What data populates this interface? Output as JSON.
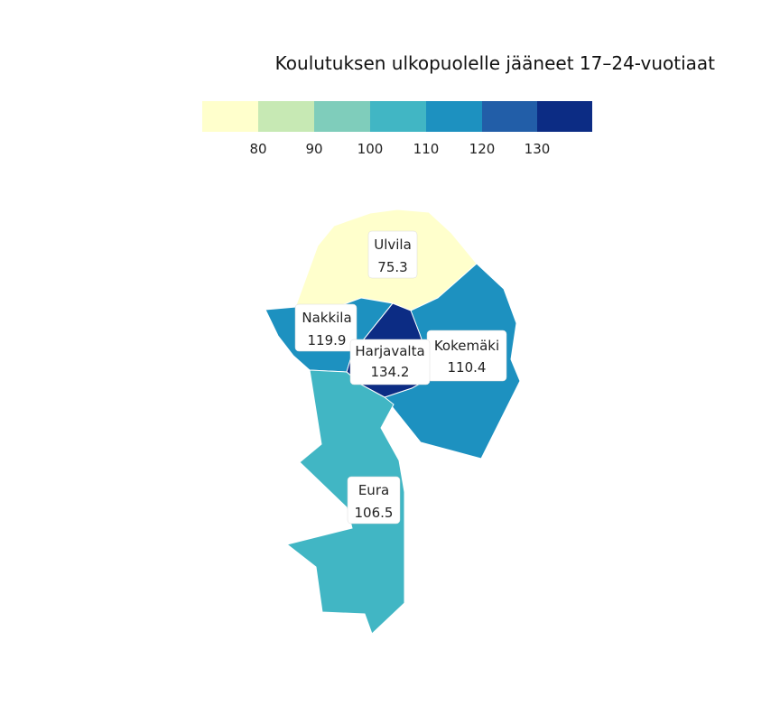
{
  "chart_data": {
    "type": "choropleth",
    "title": "Koulutuksen ulkopuolelle jääneet 17–24-vuotiaat",
    "legend": {
      "placement": "top",
      "ticks": [
        "80",
        "90",
        "100",
        "110",
        "120",
        "130"
      ],
      "colors": [
        "#ffffcc",
        "#c7e9b4",
        "#7fcdbb",
        "#41b6c4",
        "#1d91c0",
        "#225ea8",
        "#0c2c84"
      ]
    },
    "regions": [
      {
        "name": "Ulvila",
        "value": "75.3",
        "color": "#ffffcc"
      },
      {
        "name": "Nakkila",
        "value": "119.9",
        "color": "#1d91c0"
      },
      {
        "name": "Harjavalta",
        "value": "134.2",
        "color": "#0c2c84"
      },
      {
        "name": "Kokemäki",
        "value": "110.4",
        "color": "#1d91c0"
      },
      {
        "name": "Eura",
        "value": "106.5",
        "color": "#41b6c4"
      }
    ]
  }
}
